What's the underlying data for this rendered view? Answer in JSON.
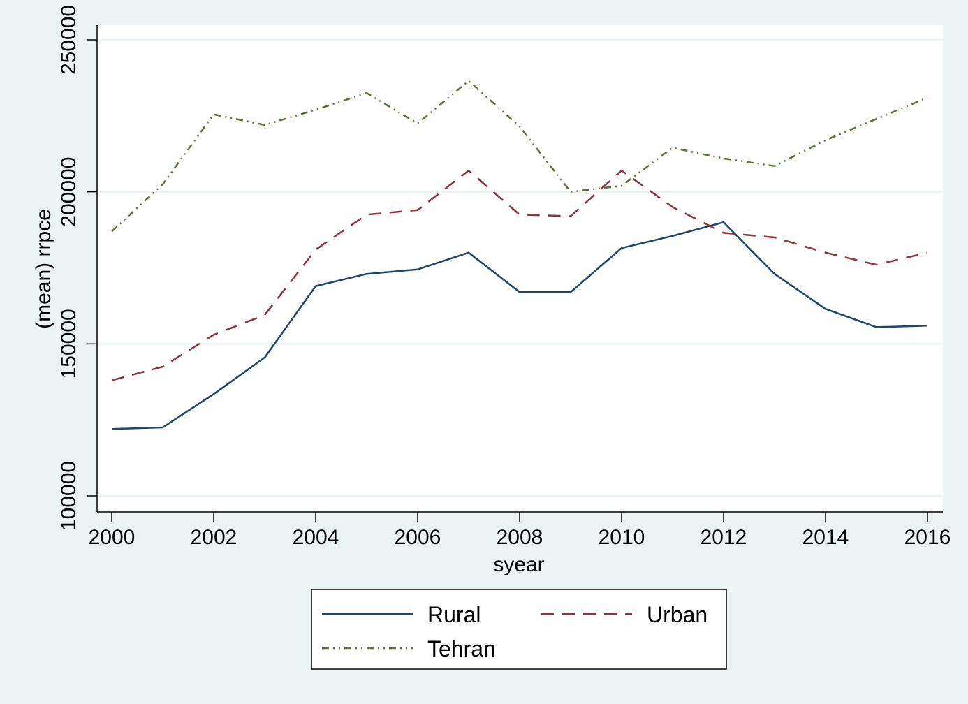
{
  "chart_data": {
    "type": "line",
    "title": "",
    "xlabel": "syear",
    "ylabel": "(mean) rrpce",
    "xlim": [
      2000,
      2016
    ],
    "ylim": [
      100000,
      250000
    ],
    "x_ticks": [
      "2000",
      "2002",
      "2004",
      "2006",
      "2008",
      "2010",
      "2012",
      "2014",
      "2016"
    ],
    "y_ticks": [
      "100000",
      "150000",
      "200000",
      "250000"
    ],
    "grid": true,
    "legend_position": "bottom",
    "x": [
      2000,
      2001,
      2002,
      2003,
      2004,
      2005,
      2006,
      2007,
      2008,
      2009,
      2010,
      2011,
      2012,
      2013,
      2014,
      2015,
      2016
    ],
    "series": [
      {
        "name": "Rural",
        "color": "#1a476f",
        "dash": "solid",
        "values": [
          122000,
          122500,
          133500,
          145500,
          169000,
          173000,
          174500,
          180000,
          167000,
          167000,
          181500,
          185500,
          190000,
          173000,
          161500,
          155500,
          156000
        ]
      },
      {
        "name": "Urban",
        "color": "#90353b",
        "dash": "dashed",
        "values": [
          138000,
          142500,
          153000,
          159500,
          181000,
          192500,
          194000,
          207000,
          192500,
          192000,
          207000,
          195000,
          186500,
          185000,
          180000,
          176000,
          180000
        ]
      },
      {
        "name": "Tehran",
        "color": "#55752f",
        "dash": "dash-dot",
        "values": [
          187000,
          202500,
          225500,
          222000,
          227000,
          232500,
          222500,
          236500,
          221500,
          200000,
          202000,
          214500,
          211000,
          208500,
          217000,
          224000,
          231000
        ]
      }
    ]
  }
}
